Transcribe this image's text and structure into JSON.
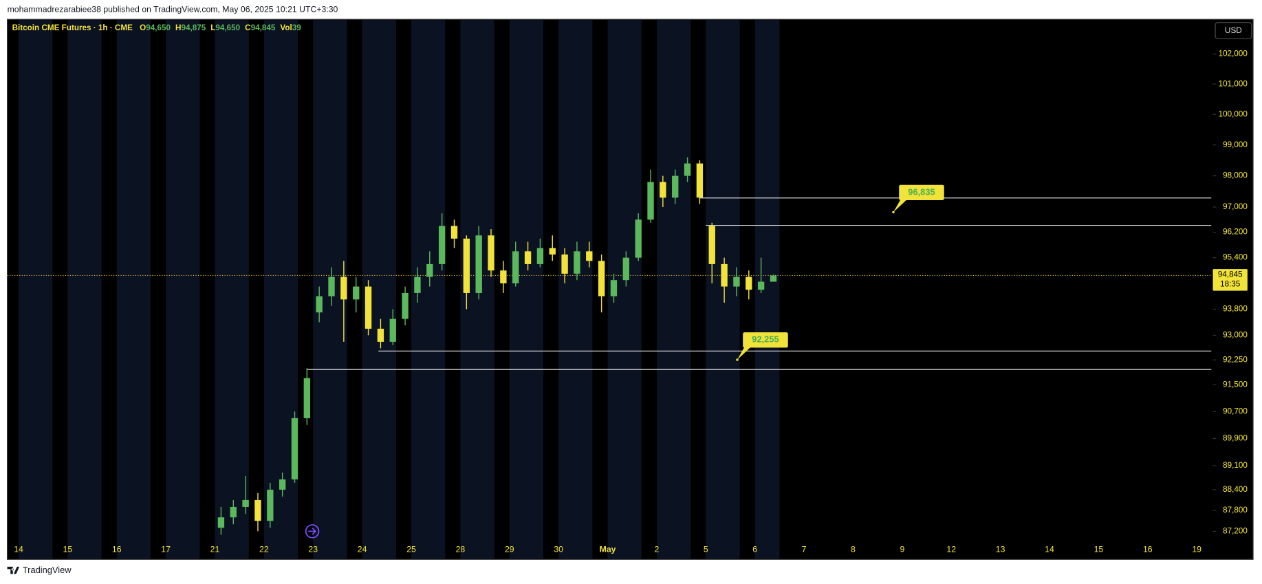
{
  "header": "mohammadrezarabiee38 published on TradingView.com, May 06, 2025 10:21 UTC+3:30",
  "footer": "TradingView",
  "chart_data": {
    "type": "candlestick",
    "title": "Bitcoin CME Futures · 1h · CME",
    "currency": "USD",
    "last_bar": [
      {
        "name": "O",
        "value": 94650,
        "label": "94,650"
      },
      {
        "name": "H",
        "value": 94875,
        "label": "94,875"
      },
      {
        "name": "L",
        "value": 94650,
        "label": "94,650"
      },
      {
        "name": "C",
        "value": 94845,
        "label": "94,845"
      },
      {
        "name": "Vol",
        "value": 39
      }
    ],
    "categories": [
      "14",
      "15",
      "16",
      "17",
      "21",
      "22",
      "23",
      "24",
      "25",
      "28",
      "29",
      "30",
      "May",
      "2",
      "5",
      "6",
      "7",
      "8",
      "9",
      "12",
      "13",
      "14",
      "15",
      "16",
      "19"
    ],
    "up_color": "#5cb85c",
    "down_color": "#f2e33a",
    "log": true,
    "ylim": [
      86970,
      103170
    ],
    "yticks": [
      {
        "value": 102000,
        "label": "102,000"
      },
      {
        "value": 101000,
        "label": "101,000"
      },
      {
        "value": 100000,
        "label": "100,000"
      },
      {
        "value": 99000,
        "label": "99,000"
      },
      {
        "value": 98000,
        "label": "98,000"
      },
      {
        "value": 97000,
        "label": "97,000"
      },
      {
        "value": 96200,
        "label": "96,200"
      },
      {
        "value": 95400,
        "label": "95,400"
      },
      {
        "value": 93800,
        "label": "93,800"
      },
      {
        "value": 93000,
        "label": "93,000"
      },
      {
        "value": 92250,
        "label": "92,250"
      },
      {
        "value": 91500,
        "label": "91,500"
      },
      {
        "value": 90700,
        "label": "90,700"
      },
      {
        "value": 89900,
        "label": "89,900"
      },
      {
        "value": 89100,
        "label": "89,100"
      },
      {
        "value": 88400,
        "label": "88,400"
      },
      {
        "value": 87800,
        "label": "87,800"
      },
      {
        "value": 87200,
        "label": "87,200"
      }
    ],
    "candles": {
      "x": [
        4.125,
        4.375,
        4.625,
        4.875,
        5.125,
        5.375,
        5.625,
        5.875,
        6.125,
        6.375,
        6.625,
        6.875,
        7.125,
        7.375,
        7.625,
        7.875,
        8.125,
        8.375,
        8.625,
        8.875,
        9.125,
        9.375,
        9.625,
        9.875,
        10.125,
        10.375,
        10.625,
        10.875,
        11.125,
        11.375,
        11.625,
        11.875,
        12.125,
        12.375,
        12.625,
        12.875,
        13.125,
        13.375,
        13.625,
        13.875,
        14.125,
        14.375,
        14.625,
        14.875,
        15.125,
        15.375
      ],
      "open": [
        87300,
        87600,
        87900,
        88100,
        87500,
        88400,
        88700,
        90500,
        93700,
        94200,
        94800,
        94100,
        94500,
        93200,
        92800,
        93500,
        94300,
        94800,
        95200,
        96400,
        96000,
        94300,
        96100,
        95000,
        94600,
        95600,
        95200,
        95700,
        95500,
        94900,
        95600,
        95300,
        94200,
        94700,
        95400,
        96600,
        97800,
        97300,
        98000,
        98400,
        96400,
        95200,
        94500,
        94800,
        94400,
        94650
      ],
      "high": [
        87900,
        88100,
        88800,
        88300,
        88600,
        88900,
        90700,
        92000,
        94500,
        95100,
        95300,
        94800,
        94700,
        93500,
        93800,
        94500,
        95100,
        95600,
        96800,
        96600,
        96100,
        96400,
        96300,
        95300,
        95900,
        95900,
        96000,
        96100,
        95700,
        95900,
        95900,
        95500,
        94900,
        95600,
        96800,
        98200,
        98000,
        98200,
        98600,
        98500,
        96500,
        95400,
        95100,
        95000,
        95400,
        94875
      ],
      "low": [
        87100,
        87400,
        87700,
        87200,
        87300,
        88200,
        88600,
        90300,
        93400,
        93900,
        92800,
        93700,
        93000,
        92600,
        92700,
        93300,
        94000,
        94500,
        95000,
        95700,
        93800,
        94100,
        94800,
        94300,
        94500,
        95000,
        95100,
        95300,
        94600,
        94700,
        95100,
        93700,
        94000,
        94500,
        95300,
        96500,
        97000,
        97100,
        97800,
        97100,
        94600,
        94000,
        94200,
        94100,
        94300,
        94650
      ],
      "close": [
        87600,
        87900,
        88100,
        87500,
        88400,
        88700,
        90500,
        91700,
        94200,
        94800,
        94100,
        94500,
        93200,
        92800,
        93500,
        94300,
        94800,
        95200,
        96400,
        96000,
        94300,
        96100,
        95000,
        94600,
        95600,
        95200,
        95700,
        95500,
        94900,
        95600,
        95300,
        94200,
        94700,
        95400,
        96600,
        97800,
        97300,
        98000,
        98400,
        97300,
        95200,
        94500,
        94800,
        94400,
        94650,
        94845
      ]
    },
    "current_price": {
      "value": 94845,
      "label": "94,845",
      "countdown": "18:35"
    },
    "levels": [
      {
        "value": 97290,
        "x": 13.87
      },
      {
        "value": 96420,
        "x": 14.0
      },
      {
        "value": 92520,
        "x": 7.33
      },
      {
        "value": 91960,
        "x": 5.87
      }
    ],
    "annotations": [
      {
        "x": 17.82,
        "value": 96835,
        "label": "96,835"
      },
      {
        "x": 14.64,
        "value": 92255,
        "label": "92,255"
      }
    ]
  }
}
